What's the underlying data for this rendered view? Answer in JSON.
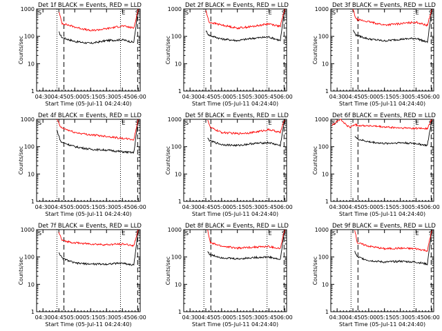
{
  "chart_data": [
    {
      "type": "line",
      "title": "Det 1f BLACK = Events, RED = LLD",
      "xlabel": "Start Time (05-Jul-11 04:24:40)",
      "ylabel": "Counts/sec",
      "ylim": [
        1,
        1000
      ],
      "yscale": "log",
      "x_tick_labels": [
        "04:30",
        "04:45",
        "05:00",
        "05:15",
        "05:30",
        "05:45",
        "06:00"
      ],
      "y_tick_labels": [
        "1",
        "10",
        "100",
        "1000"
      ],
      "markers": {
        "S": "S",
        "E": "E"
      },
      "series": [
        {
          "name": "Events",
          "color": "#000000",
          "x": [
            4.75,
            4.8,
            5.0,
            5.25,
            5.5,
            5.75,
            5.93,
            6.0
          ],
          "y": [
            140,
            90,
            65,
            55,
            70,
            75,
            60,
            1000
          ]
        },
        {
          "name": "LLD",
          "color": "#ff0000",
          "x": [
            4.75,
            4.8,
            5.0,
            5.25,
            5.5,
            5.75,
            5.93,
            6.0
          ],
          "y": [
            800,
            300,
            220,
            160,
            190,
            240,
            200,
            1000
          ]
        }
      ]
    },
    {
      "type": "line",
      "title": "Det 2f BLACK = Events, RED = LLD",
      "xlabel": "Start Time (05-Jul-11 04:24:40)",
      "ylabel": "Counts/sec",
      "ylim": [
        1,
        1000
      ],
      "yscale": "log",
      "x_tick_labels": [
        "04:30",
        "04:45",
        "05:00",
        "05:15",
        "05:30",
        "05:45",
        "06:00"
      ],
      "y_tick_labels": [
        "1",
        "10",
        "100",
        "1000"
      ],
      "markers": {
        "S": "S",
        "E": "E"
      },
      "series": [
        {
          "name": "Events",
          "color": "#000000",
          "x": [
            4.75,
            4.8,
            5.0,
            5.25,
            5.5,
            5.75,
            5.93,
            6.0
          ],
          "y": [
            160,
            110,
            80,
            70,
            85,
            95,
            70,
            1000
          ]
        },
        {
          "name": "LLD",
          "color": "#ff0000",
          "x": [
            4.75,
            4.8,
            5.0,
            5.25,
            5.5,
            5.75,
            5.93,
            6.0
          ],
          "y": [
            900,
            330,
            260,
            200,
            230,
            290,
            230,
            1000
          ]
        }
      ]
    },
    {
      "type": "line",
      "title": "Det 3f BLACK = Events, RED = LLD",
      "xlabel": "Start Time (05-Jul-11 04:24:40)",
      "ylabel": "Counts/sec",
      "ylim": [
        1,
        1000
      ],
      "yscale": "log",
      "x_tick_labels": [
        "04:30",
        "04:45",
        "05:00",
        "05:15",
        "05:30",
        "05:45",
        "06:00"
      ],
      "y_tick_labels": [
        "1",
        "10",
        "100",
        "1000"
      ],
      "markers": {
        "S": "S",
        "E": "E"
      },
      "series": [
        {
          "name": "Events",
          "color": "#000000",
          "x": [
            4.75,
            4.8,
            5.0,
            5.25,
            5.5,
            5.75,
            5.93,
            6.0
          ],
          "y": [
            170,
            110,
            80,
            68,
            78,
            85,
            60,
            1000
          ]
        },
        {
          "name": "LLD",
          "color": "#ff0000",
          "x": [
            4.75,
            4.8,
            5.0,
            5.25,
            5.5,
            5.75,
            5.93,
            6.0
          ],
          "y": [
            1000,
            420,
            340,
            260,
            290,
            330,
            250,
            1000
          ]
        }
      ]
    },
    {
      "type": "line",
      "title": "Det 4f BLACK = Events, RED = LLD",
      "xlabel": "Start Time (05-Jul-11 04:24:40)",
      "ylabel": "Counts/sec",
      "ylim": [
        1,
        1000
      ],
      "yscale": "log",
      "x_tick_labels": [
        "04:30",
        "04:45",
        "05:00",
        "05:15",
        "05:30",
        "05:45",
        "06:00"
      ],
      "y_tick_labels": [
        "1",
        "10",
        "100",
        "1000"
      ],
      "markers": {
        "S": "S",
        "E": "E"
      },
      "series": [
        {
          "name": "Events",
          "color": "#000000",
          "x": [
            4.72,
            4.78,
            5.0,
            5.25,
            5.5,
            5.75,
            5.93,
            6.0
          ],
          "y": [
            400,
            150,
            100,
            80,
            75,
            65,
            60,
            1000
          ]
        },
        {
          "name": "LLD",
          "color": "#ff0000",
          "x": [
            4.72,
            4.78,
            5.0,
            5.25,
            5.5,
            5.75,
            5.93,
            6.0
          ],
          "y": [
            1000,
            500,
            330,
            270,
            240,
            200,
            180,
            1000
          ]
        }
      ]
    },
    {
      "type": "line",
      "title": "Det 5f BLACK = Events, RED = LLD",
      "xlabel": "Start Time (05-Jul-11 04:24:40)",
      "ylabel": "Counts/sec",
      "ylim": [
        1,
        1000
      ],
      "yscale": "log",
      "x_tick_labels": [
        "04:30",
        "04:45",
        "05:00",
        "05:15",
        "05:30",
        "05:45",
        "06:00"
      ],
      "y_tick_labels": [
        "1",
        "10",
        "100",
        "1000"
      ],
      "markers": {
        "S": "S",
        "E": "E"
      },
      "series": [
        {
          "name": "Events",
          "color": "#000000",
          "x": [
            4.78,
            4.82,
            5.0,
            5.25,
            5.5,
            5.75,
            5.93,
            6.0
          ],
          "y": [
            200,
            160,
            120,
            110,
            130,
            140,
            110,
            1000
          ]
        },
        {
          "name": "LLD",
          "color": "#ff0000",
          "x": [
            4.78,
            4.82,
            5.0,
            5.25,
            5.5,
            5.75,
            5.93,
            6.0
          ],
          "y": [
            1000,
            500,
            330,
            300,
            330,
            420,
            330,
            1000
          ]
        }
      ]
    },
    {
      "type": "line",
      "title": "Det 6f BLACK = Events, RED = LLD",
      "xlabel": "Start Time (05-Jul-11 04:24:40)",
      "ylabel": "Counts/sec",
      "ylim": [
        1,
        1000
      ],
      "yscale": "log",
      "x_tick_labels": [
        "04:30",
        "04:45",
        "05:00",
        "05:15",
        "05:30",
        "05:45",
        "06:00"
      ],
      "y_tick_labels": [
        "1",
        "10",
        "100",
        "1000"
      ],
      "markers": {
        "S": "S",
        "E": "E"
      },
      "series": [
        {
          "name": "Events",
          "color": "#000000",
          "x": [
            4.78,
            4.82,
            5.0,
            5.25,
            5.5,
            5.75,
            5.93,
            6.0
          ],
          "y": [
            250,
            190,
            150,
            130,
            140,
            130,
            110,
            1000
          ]
        },
        {
          "name": "LLD",
          "color": "#ff0000",
          "x": [
            4.42,
            4.5,
            4.55,
            4.62,
            4.7,
            4.78,
            4.82,
            5.0,
            5.25,
            5.5,
            5.75,
            5.93,
            6.0
          ],
          "y": [
            600,
            850,
            1000,
            700,
            500,
            650,
            600,
            580,
            520,
            480,
            470,
            460,
            1000
          ]
        }
      ]
    },
    {
      "type": "line",
      "title": "Det 7f BLACK = Events, RED = LLD",
      "xlabel": "Start Time (05-Jul-11 04:24:40)",
      "ylabel": "Counts/sec",
      "ylim": [
        1,
        1000
      ],
      "yscale": "log",
      "x_tick_labels": [
        "04:30",
        "04:45",
        "05:00",
        "05:15",
        "05:30",
        "05:45",
        "06:00"
      ],
      "y_tick_labels": [
        "1",
        "10",
        "100",
        "1000"
      ],
      "markers": {
        "S": "S",
        "E": "E"
      },
      "series": [
        {
          "name": "Events",
          "color": "#000000",
          "x": [
            4.75,
            4.8,
            5.0,
            5.25,
            5.5,
            5.75,
            5.93,
            6.0
          ],
          "y": [
            150,
            90,
            60,
            55,
            55,
            60,
            50,
            1000
          ]
        },
        {
          "name": "LLD",
          "color": "#ff0000",
          "x": [
            4.75,
            4.8,
            5.0,
            5.25,
            5.5,
            5.75,
            5.93,
            6.0
          ],
          "y": [
            800,
            400,
            330,
            300,
            280,
            300,
            260,
            1000
          ]
        }
      ]
    },
    {
      "type": "line",
      "title": "Det 8f BLACK = Events, RED = LLD",
      "xlabel": "Start Time (05-Jul-11 04:24:40)",
      "ylabel": "Counts/sec",
      "ylim": [
        1,
        1000
      ],
      "yscale": "log",
      "x_tick_labels": [
        "04:30",
        "04:45",
        "05:00",
        "05:15",
        "05:30",
        "05:45",
        "06:00"
      ],
      "y_tick_labels": [
        "1",
        "10",
        "100",
        "1000"
      ],
      "markers": {
        "S": "S",
        "E": "E"
      },
      "series": [
        {
          "name": "Events",
          "color": "#000000",
          "x": [
            4.78,
            4.82,
            5.0,
            5.25,
            5.5,
            5.75,
            5.93,
            6.0
          ],
          "y": [
            160,
            120,
            95,
            85,
            95,
            100,
            80,
            1000
          ]
        },
        {
          "name": "LLD",
          "color": "#ff0000",
          "x": [
            4.78,
            4.82,
            5.0,
            5.25,
            5.5,
            5.75,
            5.93,
            6.0
          ],
          "y": [
            1000,
            330,
            250,
            210,
            230,
            240,
            200,
            1000
          ]
        }
      ]
    },
    {
      "type": "line",
      "title": "Det 9f BLACK = Events, RED = LLD",
      "xlabel": "Start Time (05-Jul-11 04:24:40)",
      "ylabel": "Counts/sec",
      "ylim": [
        1,
        1000
      ],
      "yscale": "log",
      "x_tick_labels": [
        "04:30",
        "04:45",
        "05:00",
        "05:15",
        "05:30",
        "05:45",
        "06:00"
      ],
      "y_tick_labels": [
        "1",
        "10",
        "100",
        "1000"
      ],
      "markers": {
        "S": "S",
        "E": "E"
      },
      "series": [
        {
          "name": "Events",
          "color": "#000000",
          "x": [
            4.78,
            4.82,
            5.0,
            5.25,
            5.5,
            5.75,
            5.93,
            6.0
          ],
          "y": [
            160,
            100,
            75,
            65,
            70,
            65,
            55,
            1000
          ]
        },
        {
          "name": "LLD",
          "color": "#ff0000",
          "x": [
            4.78,
            4.82,
            5.0,
            5.25,
            5.5,
            5.75,
            5.93,
            6.0
          ],
          "y": [
            1000,
            330,
            250,
            200,
            210,
            200,
            170,
            1000
          ]
        }
      ]
    }
  ],
  "vlines": {
    "dotted": [
      4.72,
      5.72
    ],
    "dashed": [
      4.83,
      5.99
    ]
  }
}
